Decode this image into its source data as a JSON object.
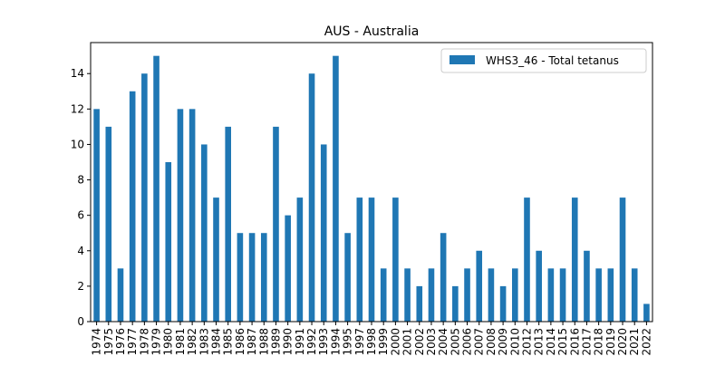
{
  "chart_data": {
    "type": "bar",
    "title": "AUS - Australia",
    "categories": [
      "1974",
      "1975",
      "1976",
      "1977",
      "1978",
      "1979",
      "1980",
      "1981",
      "1982",
      "1983",
      "1984",
      "1985",
      "1986",
      "1987",
      "1988",
      "1989",
      "1990",
      "1991",
      "1992",
      "1993",
      "1994",
      "1995",
      "1997",
      "1998",
      "1999",
      "2000",
      "2001",
      "2002",
      "2003",
      "2004",
      "2005",
      "2006",
      "2007",
      "2008",
      "2009",
      "2010",
      "2012",
      "2013",
      "2014",
      "2015",
      "2016",
      "2017",
      "2018",
      "2019",
      "2020",
      "2021",
      "2022"
    ],
    "series": [
      {
        "name": "WHS3_46 - Total tetanus",
        "color": "#1f77b4",
        "values": [
          12,
          11,
          3,
          13,
          14,
          15,
          9,
          12,
          12,
          10,
          7,
          11,
          5,
          5,
          5,
          11,
          6,
          7,
          14,
          10,
          15,
          5,
          7,
          7,
          3,
          7,
          3,
          2,
          3,
          5,
          2,
          3,
          4,
          3,
          2,
          3,
          7,
          4,
          3,
          3,
          7,
          4,
          3,
          3,
          7,
          3,
          1
        ]
      }
    ],
    "ylim": [
      0,
      15.75
    ],
    "yticks": [
      0,
      2,
      4,
      6,
      8,
      10,
      12,
      14
    ],
    "legend": "upper right"
  }
}
